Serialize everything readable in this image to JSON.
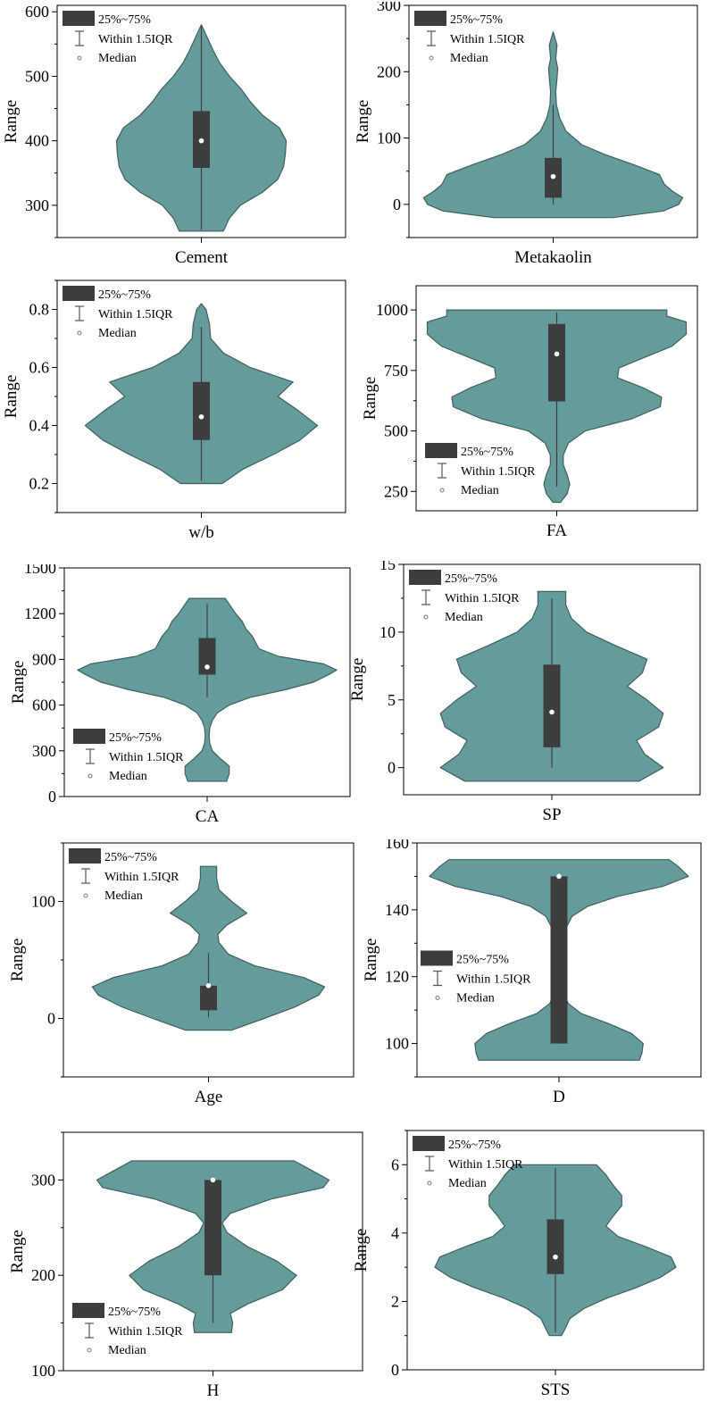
{
  "legend": {
    "box_label": "25%~75%",
    "whisker_label": "Within 1.5IQR",
    "median_label": "Median"
  },
  "colors": {
    "violin": "#669b9b",
    "violin_edge": "#3f5f5f",
    "box": "#3d3d3d",
    "median": "#ffffff",
    "frame": "#000000"
  },
  "chart_data": [
    {
      "type": "violin",
      "xlabel": "Cement",
      "ylabel": "Range",
      "ylim": [
        250,
        610
      ],
      "yticks": [
        300,
        400,
        500,
        600
      ],
      "ytick_labels": [
        "300",
        "400",
        "500",
        "600"
      ],
      "legend_position": "top-left",
      "box": {
        "q1": 358,
        "q3": 446,
        "median": 400,
        "whisker_low": 262,
        "whisker_high": 578
      },
      "density": [
        [
          260,
          0.26
        ],
        [
          280,
          0.33
        ],
        [
          300,
          0.46
        ],
        [
          320,
          0.72
        ],
        [
          340,
          0.9
        ],
        [
          360,
          0.97
        ],
        [
          380,
          0.99
        ],
        [
          400,
          1.0
        ],
        [
          420,
          0.92
        ],
        [
          440,
          0.72
        ],
        [
          460,
          0.58
        ],
        [
          480,
          0.47
        ],
        [
          500,
          0.33
        ],
        [
          520,
          0.22
        ],
        [
          540,
          0.14
        ],
        [
          560,
          0.07
        ],
        [
          580,
          0.0
        ]
      ]
    },
    {
      "type": "violin",
      "xlabel": "Metakaolin",
      "ylabel": "Range",
      "ylim": [
        -50,
        300
      ],
      "yticks": [
        0,
        100,
        200,
        300
      ],
      "ytick_labels": [
        "0",
        "100",
        "200",
        "300"
      ],
      "legend_position": "top-left",
      "box": {
        "q1": 10,
        "q3": 70,
        "median": 42,
        "whisker_low": 0,
        "whisker_high": 150
      },
      "density": [
        [
          -20,
          0.46
        ],
        [
          -10,
          0.85
        ],
        [
          0,
          0.97
        ],
        [
          10,
          1.0
        ],
        [
          20,
          0.92
        ],
        [
          30,
          0.86
        ],
        [
          45,
          0.82
        ],
        [
          60,
          0.62
        ],
        [
          75,
          0.4
        ],
        [
          90,
          0.22
        ],
        [
          110,
          0.1
        ],
        [
          130,
          0.05
        ],
        [
          150,
          0.025
        ],
        [
          170,
          0.02
        ],
        [
          190,
          0.03
        ],
        [
          205,
          0.035
        ],
        [
          220,
          0.02
        ],
        [
          240,
          0.03
        ],
        [
          260,
          0.0
        ]
      ]
    },
    {
      "type": "violin",
      "xlabel": "w/b",
      "ylabel": "Range",
      "ylim": [
        0.1,
        0.9
      ],
      "yticks": [
        0.2,
        0.4,
        0.6,
        0.8
      ],
      "ytick_labels": [
        "0.2",
        "0.4",
        "0.6",
        "0.8"
      ],
      "legend_position": "top-left",
      "box": {
        "q1": 0.35,
        "q3": 0.55,
        "median": 0.43,
        "whisker_low": 0.21,
        "whisker_high": 0.74
      },
      "density": [
        [
          0.2,
          0.18
        ],
        [
          0.25,
          0.36
        ],
        [
          0.3,
          0.62
        ],
        [
          0.35,
          0.85
        ],
        [
          0.4,
          1.0
        ],
        [
          0.45,
          0.84
        ],
        [
          0.5,
          0.66
        ],
        [
          0.55,
          0.79
        ],
        [
          0.6,
          0.42
        ],
        [
          0.65,
          0.19
        ],
        [
          0.7,
          0.08
        ],
        [
          0.75,
          0.07
        ],
        [
          0.8,
          0.04
        ],
        [
          0.82,
          0.0
        ]
      ]
    },
    {
      "type": "violin",
      "xlabel": "FA",
      "ylabel": "Range",
      "ylim": [
        170,
        1100
      ],
      "yticks": [
        250,
        500,
        750,
        1000
      ],
      "ytick_labels": [
        "250",
        "500",
        "750",
        "1000"
      ],
      "legend_position": "bottom-left",
      "box": {
        "q1": 622,
        "q3": 942,
        "median": 818,
        "whisker_low": 270,
        "whisker_high": 990
      },
      "density": [
        [
          205,
          0.03
        ],
        [
          240,
          0.08
        ],
        [
          280,
          0.1
        ],
        [
          320,
          0.08
        ],
        [
          360,
          0.05
        ],
        [
          400,
          0.05
        ],
        [
          450,
          0.09
        ],
        [
          500,
          0.22
        ],
        [
          550,
          0.58
        ],
        [
          600,
          0.8
        ],
        [
          640,
          0.81
        ],
        [
          680,
          0.66
        ],
        [
          720,
          0.47
        ],
        [
          760,
          0.48
        ],
        [
          800,
          0.66
        ],
        [
          850,
          0.89
        ],
        [
          900,
          1.0
        ],
        [
          950,
          1.0
        ],
        [
          975,
          0.85
        ],
        [
          1000,
          0.85
        ]
      ]
    },
    {
      "type": "violin",
      "xlabel": "CA",
      "ylabel": "Range",
      "ylim": [
        0,
        1500
      ],
      "yticks": [
        0,
        300,
        600,
        900,
        1200,
        1500
      ],
      "ytick_labels": [
        "0",
        "300",
        "600",
        "900",
        "1200",
        "1500"
      ],
      "legend_position": "bottom-left",
      "box": {
        "q1": 800,
        "q3": 1040,
        "median": 850,
        "whisker_low": 650,
        "whisker_high": 1265
      },
      "density": [
        [
          100,
          0.15
        ],
        [
          150,
          0.17
        ],
        [
          200,
          0.17
        ],
        [
          250,
          0.1
        ],
        [
          300,
          0.04
        ],
        [
          350,
          0.02
        ],
        [
          400,
          0.015
        ],
        [
          450,
          0.02
        ],
        [
          500,
          0.04
        ],
        [
          550,
          0.08
        ],
        [
          600,
          0.17
        ],
        [
          650,
          0.33
        ],
        [
          700,
          0.6
        ],
        [
          750,
          0.82
        ],
        [
          800,
          0.94
        ],
        [
          830,
          1.0
        ],
        [
          870,
          0.9
        ],
        [
          920,
          0.55
        ],
        [
          970,
          0.4
        ],
        [
          1050,
          0.35
        ],
        [
          1100,
          0.3
        ],
        [
          1150,
          0.27
        ],
        [
          1200,
          0.22
        ],
        [
          1250,
          0.18
        ],
        [
          1300,
          0.14
        ]
      ]
    },
    {
      "type": "violin",
      "xlabel": "SP",
      "ylabel": "Range",
      "ylim": [
        -2,
        15
      ],
      "yticks": [
        0,
        5,
        10,
        15
      ],
      "ytick_labels": [
        "0",
        "5",
        "10",
        "15"
      ],
      "legend_position": "top-left",
      "box": {
        "q1": 1.5,
        "q3": 7.6,
        "median": 4.1,
        "whisker_low": 0,
        "whisker_high": 12.5
      },
      "density": [
        [
          -1,
          0.75
        ],
        [
          0,
          0.96
        ],
        [
          1,
          0.8
        ],
        [
          2,
          0.73
        ],
        [
          3,
          0.92
        ],
        [
          4,
          0.96
        ],
        [
          5,
          0.82
        ],
        [
          6,
          0.65
        ],
        [
          7,
          0.78
        ],
        [
          8,
          0.82
        ],
        [
          9,
          0.55
        ],
        [
          10,
          0.3
        ],
        [
          11,
          0.17
        ],
        [
          12,
          0.12
        ],
        [
          13,
          0.12
        ]
      ]
    },
    {
      "type": "violin",
      "xlabel": "Age",
      "ylabel": "Range",
      "ylim": [
        -50,
        150
      ],
      "yticks": [
        0,
        100
      ],
      "ytick_labels": [
        "0",
        "100"
      ],
      "legend_position": "top-left",
      "box": {
        "q1": 7,
        "q3": 28,
        "median": 28,
        "whisker_low": 1,
        "whisker_high": 56
      },
      "density": [
        [
          -10,
          0.2
        ],
        [
          0,
          0.48
        ],
        [
          10,
          0.75
        ],
        [
          20,
          0.95
        ],
        [
          27,
          1.0
        ],
        [
          35,
          0.82
        ],
        [
          45,
          0.4
        ],
        [
          55,
          0.17
        ],
        [
          65,
          0.09
        ],
        [
          72,
          0.08
        ],
        [
          80,
          0.16
        ],
        [
          90,
          0.33
        ],
        [
          100,
          0.2
        ],
        [
          110,
          0.09
        ],
        [
          120,
          0.07
        ],
        [
          130,
          0.07
        ]
      ]
    },
    {
      "type": "violin",
      "xlabel": "D",
      "ylabel": "Range",
      "ylim": [
        90,
        160
      ],
      "yticks": [
        100,
        120,
        140,
        160
      ],
      "ytick_labels": [
        "100",
        "120",
        "140",
        "160"
      ],
      "legend_position": "middle-left",
      "box": {
        "q1": 100,
        "q3": 150,
        "median": 150,
        "whisker_low": 100,
        "whisker_high": 150
      },
      "density": [
        [
          95,
          0.62
        ],
        [
          97,
          0.64
        ],
        [
          100,
          0.65
        ],
        [
          103,
          0.56
        ],
        [
          106,
          0.38
        ],
        [
          109,
          0.17
        ],
        [
          112,
          0.07
        ],
        [
          115,
          0.04
        ],
        [
          120,
          0.03
        ],
        [
          125,
          0.03
        ],
        [
          130,
          0.04
        ],
        [
          135,
          0.06
        ],
        [
          138,
          0.1
        ],
        [
          141,
          0.22
        ],
        [
          144,
          0.45
        ],
        [
          147,
          0.8
        ],
        [
          150,
          1.0
        ],
        [
          153,
          0.92
        ],
        [
          155,
          0.85
        ]
      ]
    },
    {
      "type": "violin",
      "xlabel": "H",
      "ylabel": "Range",
      "ylim": [
        100,
        350
      ],
      "yticks": [
        100,
        200,
        300
      ],
      "ytick_labels": [
        "100",
        "200",
        "300"
      ],
      "legend_position": "bottom-left",
      "box": {
        "q1": 200,
        "q3": 300,
        "median": 300,
        "whisker_low": 150,
        "whisker_high": 300
      },
      "density": [
        [
          140,
          0.16
        ],
        [
          150,
          0.17
        ],
        [
          160,
          0.15
        ],
        [
          170,
          0.3
        ],
        [
          185,
          0.6
        ],
        [
          200,
          0.72
        ],
        [
          215,
          0.55
        ],
        [
          230,
          0.3
        ],
        [
          245,
          0.12
        ],
        [
          255,
          0.08
        ],
        [
          265,
          0.15
        ],
        [
          280,
          0.5
        ],
        [
          292,
          0.95
        ],
        [
          300,
          1.0
        ],
        [
          310,
          0.85
        ],
        [
          320,
          0.7
        ]
      ]
    },
    {
      "type": "violin",
      "xlabel": "STS",
      "ylabel": "Range",
      "ylim": [
        0,
        7
      ],
      "yticks": [
        0,
        2,
        4,
        6
      ],
      "ytick_labels": [
        "0",
        "2",
        "4",
        "6"
      ],
      "legend_position": "top-left",
      "box": {
        "q1": 2.8,
        "q3": 4.4,
        "median": 3.3,
        "whisker_low": 1.1,
        "whisker_high": 5.9
      },
      "density": [
        [
          1.0,
          0.05
        ],
        [
          1.2,
          0.08
        ],
        [
          1.5,
          0.12
        ],
        [
          1.8,
          0.24
        ],
        [
          2.1,
          0.43
        ],
        [
          2.4,
          0.67
        ],
        [
          2.7,
          0.87
        ],
        [
          3.0,
          1.0
        ],
        [
          3.3,
          0.96
        ],
        [
          3.6,
          0.75
        ],
        [
          3.9,
          0.52
        ],
        [
          4.2,
          0.42
        ],
        [
          4.5,
          0.48
        ],
        [
          4.8,
          0.55
        ],
        [
          5.1,
          0.55
        ],
        [
          5.4,
          0.48
        ],
        [
          5.7,
          0.42
        ],
        [
          6.0,
          0.34
        ]
      ]
    }
  ]
}
